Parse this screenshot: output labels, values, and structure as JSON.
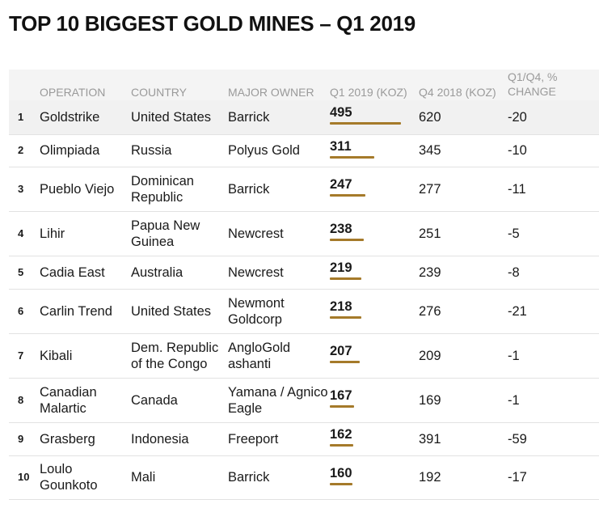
{
  "title": "TOP 10 BIGGEST GOLD MINES – Q1 2019",
  "colors": {
    "bar": "#a57a2a",
    "highlight_row": "#f1f1f1",
    "header_bg": "#f4f4f4"
  },
  "chart_data": {
    "type": "table",
    "title": "TOP 10 BIGGEST GOLD MINES – Q1 2019",
    "columns": {
      "rank": "",
      "operation": "OPERATION",
      "country": "COUNTRY",
      "owner": "MAJOR OWNER",
      "q1": "Q1 2019 (KOZ)",
      "q4": "Q4 2018 (KOZ)",
      "change": "Q1/Q4, % CHANGE"
    },
    "bar_max": 495,
    "rows": [
      {
        "rank": "1",
        "operation": "Goldstrike",
        "country": "United States",
        "owner": "Barrick",
        "q1": 495,
        "q4": 620,
        "change": "-20"
      },
      {
        "rank": "2",
        "operation": "Olimpiada",
        "country": "Russia",
        "owner": "Polyus Gold",
        "q1": 311,
        "q4": 345,
        "change": "-10"
      },
      {
        "rank": "3",
        "operation": "Pueblo Viejo",
        "country": "Dominican Republic",
        "owner": "Barrick",
        "q1": 247,
        "q4": 277,
        "change": "-11"
      },
      {
        "rank": "4",
        "operation": "Lihir",
        "country": "Papua New Guinea",
        "owner": "Newcrest",
        "q1": 238,
        "q4": 251,
        "change": "-5"
      },
      {
        "rank": "5",
        "operation": "Cadia East",
        "country": "Australia",
        "owner": "Newcrest",
        "q1": 219,
        "q4": 239,
        "change": "-8"
      },
      {
        "rank": "6",
        "operation": "Carlin Trend",
        "country": "United States",
        "owner": "Newmont Goldcorp",
        "q1": 218,
        "q4": 276,
        "change": "-21"
      },
      {
        "rank": "7",
        "operation": "Kibali",
        "country": "Dem. Republic of the Congo",
        "owner": "AngloGold ashanti",
        "q1": 207,
        "q4": 209,
        "change": "-1"
      },
      {
        "rank": "8",
        "operation": "Canadian Malartic",
        "country": "Canada",
        "owner": "Yamana / Agnico Eagle",
        "q1": 167,
        "q4": 169,
        "change": "-1"
      },
      {
        "rank": "9",
        "operation": "Grasberg",
        "country": "Indonesia",
        "owner": "Freeport",
        "q1": 162,
        "q4": 391,
        "change": "-59"
      },
      {
        "rank": "10",
        "operation": "Loulo Gounkoto",
        "country": "Mali",
        "owner": "Barrick",
        "q1": 160,
        "q4": 192,
        "change": "-17"
      }
    ]
  }
}
